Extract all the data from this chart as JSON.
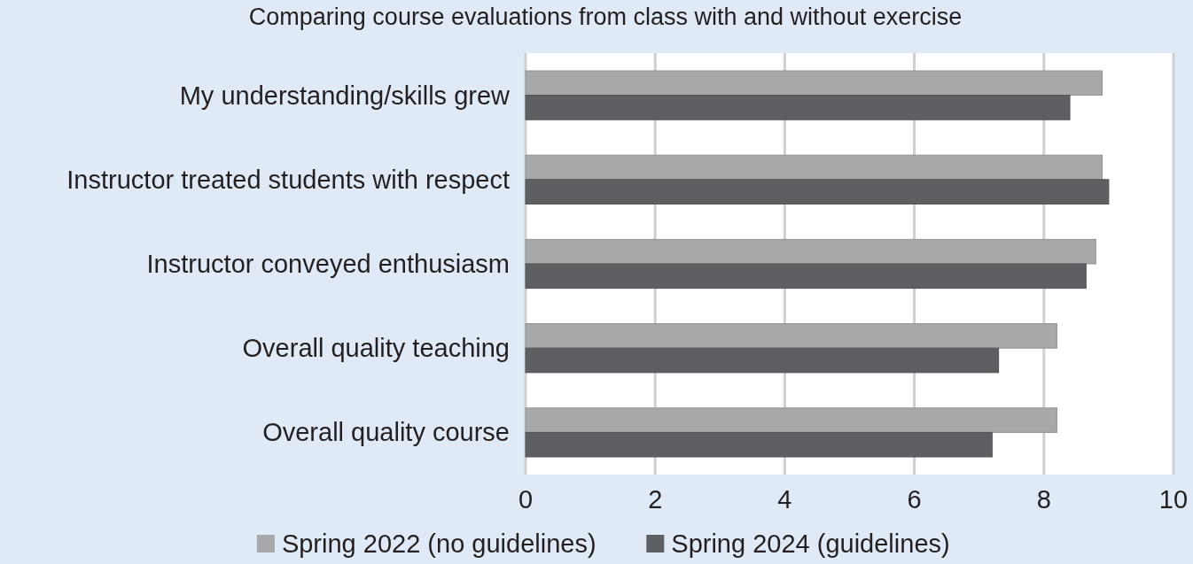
{
  "chart_data": {
    "type": "bar",
    "orientation": "horizontal",
    "title": "Comparing course evaluations from class with and without exercise",
    "categories": [
      "My understanding/skills grew",
      "Instructor treated students with respect",
      "Instructor conveyed enthusiasm",
      "Overall quality teaching",
      "Overall quality course"
    ],
    "series": [
      {
        "name": "Spring 2022 (no guidelines)",
        "color": "#a7a8aa",
        "values": [
          8.9,
          8.9,
          8.8,
          8.2,
          8.2
        ]
      },
      {
        "name": "Spring 2024 (guidelines)",
        "color": "#5e5f62",
        "values": [
          8.4,
          9.0,
          8.65,
          7.3,
          7.2
        ]
      }
    ],
    "xlim": [
      0,
      10
    ],
    "xticks": [
      0,
      2,
      4,
      6,
      8,
      10
    ],
    "grid": "x",
    "legend": "bottom"
  }
}
